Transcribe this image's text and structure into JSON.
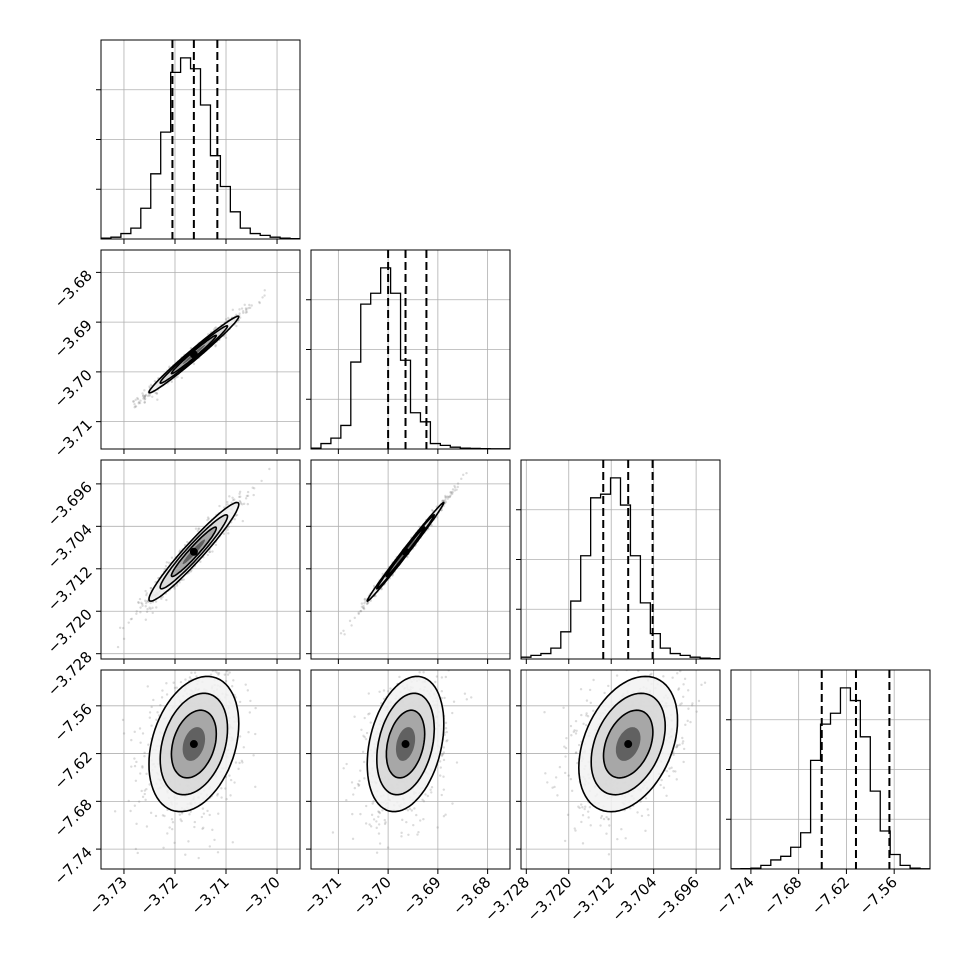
{
  "chart_data": {
    "type": "corner",
    "title": "",
    "parameters": [
      {
        "range": [
          -3.7345,
          -3.6955
        ],
        "ticks": [
          -3.73,
          -3.72,
          -3.71,
          -3.7
        ],
        "tick_labels": [
          "−3.73",
          "−3.72",
          "−3.71",
          "−3.70"
        ],
        "quantiles": [
          -3.7205,
          -3.7163,
          -3.7117
        ],
        "histogram": [
          0.005,
          0.01,
          0.03,
          0.06,
          0.17,
          0.36,
          0.59,
          0.92,
          1.0,
          0.94,
          0.74,
          0.46,
          0.29,
          0.15,
          0.06,
          0.03,
          0.02,
          0.01,
          0.005,
          0.002
        ]
      },
      {
        "range": [
          -3.7155,
          -3.6755
        ],
        "ticks": [
          -3.71,
          -3.7,
          -3.69,
          -3.68
        ],
        "tick_labels": [
          "−3.71",
          "−3.70",
          "−3.69",
          "−3.68"
        ],
        "quantiles": [
          -3.7,
          -3.6965,
          -3.6923
        ],
        "histogram": [
          0.005,
          0.03,
          0.06,
          0.13,
          0.48,
          0.8,
          0.86,
          1.0,
          0.86,
          0.49,
          0.2,
          0.15,
          0.03,
          0.02,
          0.01,
          0.005,
          0.003,
          0.002,
          0.001,
          0.001
        ]
      },
      {
        "range": [
          -3.729,
          -3.6915
        ],
        "ticks": [
          -3.728,
          -3.72,
          -3.712,
          -3.704,
          -3.696
        ],
        "tick_labels": [
          "−3.728",
          "−3.720",
          "−3.712",
          "−3.704",
          "−3.696"
        ],
        "quantiles": [
          -3.7135,
          -3.7088,
          -3.7042
        ],
        "histogram": [
          0.01,
          0.02,
          0.03,
          0.06,
          0.15,
          0.32,
          0.57,
          0.89,
          0.91,
          1.0,
          0.85,
          0.57,
          0.31,
          0.14,
          0.06,
          0.03,
          0.02,
          0.01,
          0.005,
          0.002
        ]
      },
      {
        "range": [
          -7.765,
          -7.515
        ],
        "ticks": [
          -7.74,
          -7.68,
          -7.62,
          -7.56
        ],
        "tick_labels": [
          "−7.74",
          "−7.68",
          "−7.62",
          "−7.56"
        ],
        "quantiles": [
          -7.651,
          -7.608,
          -7.566
        ],
        "histogram": [
          0.001,
          0.002,
          0.005,
          0.02,
          0.05,
          0.07,
          0.12,
          0.2,
          0.6,
          0.8,
          0.86,
          1.0,
          0.93,
          0.73,
          0.43,
          0.21,
          0.08,
          0.02,
          0.005,
          0.001
        ]
      }
    ],
    "panels_2d": [
      {
        "row": 1,
        "col": 0,
        "center": [
          -3.7163,
          -3.6965
        ]
      },
      {
        "row": 2,
        "col": 0,
        "center": [
          -3.7163,
          -3.7088
        ]
      },
      {
        "row": 2,
        "col": 1,
        "center": [
          -3.6965,
          -3.7088
        ]
      },
      {
        "row": 3,
        "col": 0,
        "center": [
          -3.7163,
          -7.608
        ]
      },
      {
        "row": 3,
        "col": 1,
        "center": [
          -3.6965,
          -7.608
        ]
      },
      {
        "row": 3,
        "col": 2,
        "center": [
          -3.7088,
          -7.608
        ]
      }
    ],
    "grid": true
  }
}
